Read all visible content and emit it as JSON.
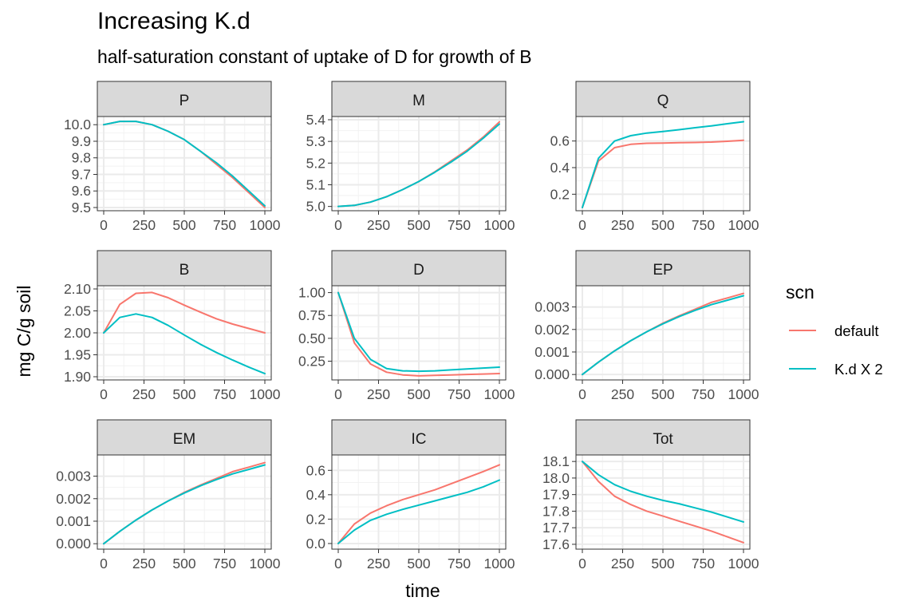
{
  "title": "Increasing K.d",
  "subtitle": "half-saturation constant of uptake of D for growth of B",
  "chart_data": {
    "type": "line",
    "xlabel": "time",
    "ylabel": "mg C/g soil",
    "grid": true,
    "legend": {
      "title": "scn",
      "placement": "right",
      "entries": [
        {
          "name": "default",
          "color": "#F8766D"
        },
        {
          "name": "K.d X 2",
          "color": "#00BFC4"
        }
      ]
    },
    "x": [
      0,
      100,
      200,
      300,
      400,
      500,
      600,
      700,
      800,
      900,
      1000
    ],
    "xticks": [
      0,
      250,
      500,
      750,
      1000
    ],
    "xlim": [
      0,
      1000
    ],
    "panels": [
      {
        "name": "P",
        "ylim": [
          9.5,
          10.03
        ],
        "yticks": [
          9.5,
          9.6,
          9.7,
          9.8,
          9.9,
          10.0
        ],
        "ytick_labels": [
          "9.5",
          "9.6",
          "9.7",
          "9.8",
          "9.9",
          "10.0"
        ],
        "series": [
          {
            "name": "default",
            "values": [
              10.0,
              10.02,
              10.02,
              10.0,
              9.96,
              9.91,
              9.84,
              9.76,
              9.68,
              9.59,
              9.5
            ]
          },
          {
            "name": "K.d X 2",
            "values": [
              10.0,
              10.02,
              10.02,
              10.0,
              9.96,
              9.91,
              9.84,
              9.77,
              9.69,
              9.6,
              9.51
            ]
          }
        ]
      },
      {
        "name": "M",
        "ylim": [
          4.995,
          5.4
        ],
        "yticks": [
          5.0,
          5.1,
          5.2,
          5.3,
          5.4
        ],
        "ytick_labels": [
          "5.0",
          "5.1",
          "5.2",
          "5.3",
          "5.4"
        ],
        "series": [
          {
            "name": "default",
            "values": [
              5.0,
              5.005,
              5.02,
              5.045,
              5.078,
              5.115,
              5.16,
              5.21,
              5.26,
              5.32,
              5.39
            ]
          },
          {
            "name": "K.d X 2",
            "values": [
              5.0,
              5.005,
              5.02,
              5.045,
              5.078,
              5.115,
              5.158,
              5.205,
              5.255,
              5.315,
              5.38
            ]
          }
        ]
      },
      {
        "name": "Q",
        "ylim": [
          0.1,
          0.76
        ],
        "yticks": [
          0.2,
          0.4,
          0.6
        ],
        "ytick_labels": [
          "0.2",
          "0.4",
          "0.6"
        ],
        "series": [
          {
            "name": "default",
            "values": [
              0.1,
              0.45,
              0.55,
              0.575,
              0.583,
              0.585,
              0.587,
              0.589,
              0.592,
              0.598,
              0.605
            ]
          },
          {
            "name": "K.d X 2",
            "values": [
              0.1,
              0.47,
              0.6,
              0.64,
              0.66,
              0.672,
              0.685,
              0.7,
              0.714,
              0.73,
              0.745
            ]
          }
        ]
      },
      {
        "name": "B",
        "ylim": [
          1.9,
          2.1
        ],
        "yticks": [
          1.9,
          1.95,
          2.0,
          2.05,
          2.1
        ],
        "ytick_labels": [
          "1.90",
          "1.95",
          "2.00",
          "2.05",
          "2.10"
        ],
        "series": [
          {
            "name": "default",
            "values": [
              2.0,
              2.065,
              2.09,
              2.092,
              2.08,
              2.063,
              2.047,
              2.032,
              2.02,
              2.01,
              2.0
            ]
          },
          {
            "name": "K.d X 2",
            "values": [
              2.0,
              2.035,
              2.043,
              2.035,
              2.017,
              1.995,
              1.974,
              1.955,
              1.938,
              1.922,
              1.907
            ]
          }
        ]
      },
      {
        "name": "D",
        "ylim": [
          0.08,
          1.04
        ],
        "yticks": [
          0.25,
          0.5,
          0.75,
          1.0
        ],
        "ytick_labels": [
          "0.25",
          "0.50",
          "0.75",
          "1.00"
        ],
        "series": [
          {
            "name": "default",
            "values": [
              1.0,
              0.45,
              0.22,
              0.13,
              0.1,
              0.09,
              0.095,
              0.1,
              0.105,
              0.11,
              0.115
            ]
          },
          {
            "name": "K.d X 2",
            "values": [
              1.0,
              0.5,
              0.27,
              0.17,
              0.145,
              0.14,
              0.145,
              0.155,
              0.165,
              0.175,
              0.185
            ]
          }
        ]
      },
      {
        "name": "EP",
        "ylim": [
          -0.0001,
          0.0038
        ],
        "yticks": [
          0,
          0.001,
          0.002,
          0.003
        ],
        "ytick_labels": [
          "0.000",
          "0.001",
          "0.002",
          "0.003"
        ],
        "series": [
          {
            "name": "default",
            "values": [
              0.0,
              0.00055,
              0.00105,
              0.0015,
              0.0019,
              0.00228,
              0.0026,
              0.0029,
              0.0032,
              0.0034,
              0.0036
            ]
          },
          {
            "name": "K.d X 2",
            "values": [
              0.0,
              0.00055,
              0.00105,
              0.0015,
              0.0019,
              0.00225,
              0.00257,
              0.00285,
              0.0031,
              0.0033,
              0.0035
            ]
          }
        ]
      },
      {
        "name": "EM",
        "ylim": [
          -0.0001,
          0.0038
        ],
        "yticks": [
          0,
          0.001,
          0.002,
          0.003
        ],
        "ytick_labels": [
          "0.000",
          "0.001",
          "0.002",
          "0.003"
        ],
        "series": [
          {
            "name": "default",
            "values": [
              0.0,
              0.00055,
              0.00105,
              0.0015,
              0.0019,
              0.00228,
              0.0026,
              0.0029,
              0.0032,
              0.0034,
              0.0036
            ]
          },
          {
            "name": "K.d X 2",
            "values": [
              0.0,
              0.00055,
              0.00105,
              0.0015,
              0.0019,
              0.00225,
              0.00257,
              0.00285,
              0.0031,
              0.0033,
              0.0035
            ]
          }
        ]
      },
      {
        "name": "IC",
        "ylim": [
          -0.02,
          0.7
        ],
        "yticks": [
          0,
          0.2,
          0.4,
          0.6
        ],
        "ytick_labels": [
          "0.0",
          "0.2",
          "0.4",
          "0.6"
        ],
        "series": [
          {
            "name": "default",
            "values": [
              0.0,
              0.16,
              0.25,
              0.31,
              0.36,
              0.4,
              0.44,
              0.49,
              0.54,
              0.59,
              0.645
            ]
          },
          {
            "name": "K.d X 2",
            "values": [
              0.0,
              0.11,
              0.19,
              0.24,
              0.28,
              0.315,
              0.35,
              0.385,
              0.42,
              0.465,
              0.52
            ]
          }
        ]
      },
      {
        "name": "Tot",
        "ylim": [
          17.59,
          18.12
        ],
        "yticks": [
          17.6,
          17.7,
          17.8,
          17.9,
          18.0,
          18.1
        ],
        "ytick_labels": [
          "17.6",
          "17.7",
          "17.8",
          "17.9",
          "18.0",
          "18.1"
        ],
        "series": [
          {
            "name": "default",
            "values": [
              18.1,
              17.98,
              17.89,
              17.84,
              17.8,
              17.77,
              17.74,
              17.71,
              17.68,
              17.645,
              17.61
            ]
          },
          {
            "name": "K.d X 2",
            "values": [
              18.1,
              18.02,
              17.96,
              17.92,
              17.89,
              17.865,
              17.845,
              17.82,
              17.795,
              17.765,
              17.735
            ]
          }
        ]
      }
    ]
  }
}
